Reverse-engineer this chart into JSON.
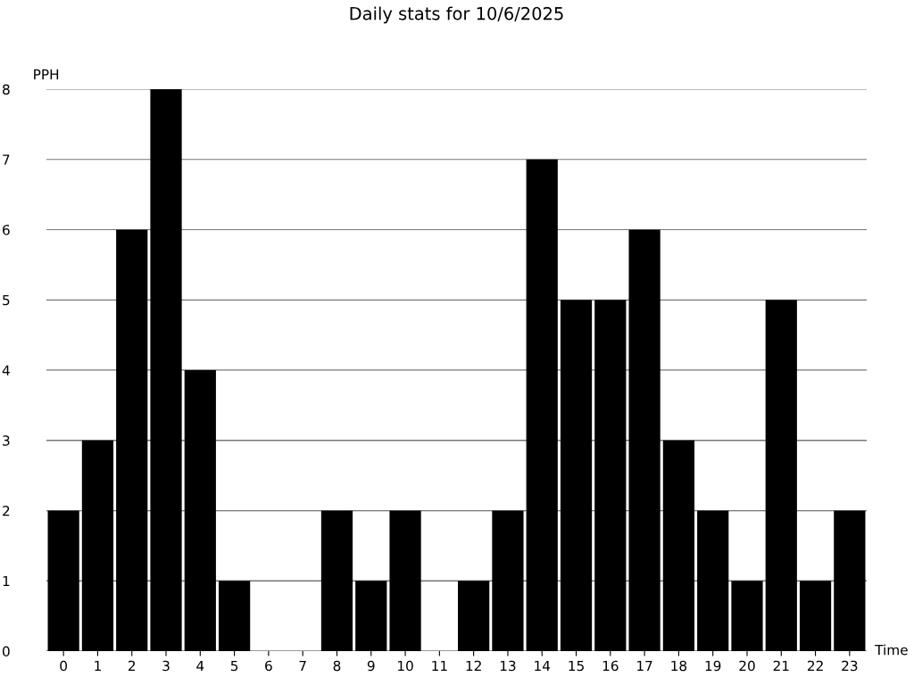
{
  "chart_data": {
    "type": "bar",
    "title": "Daily stats for 10/6/2025",
    "xlabel": "Time",
    "ylabel": "PPH",
    "categories": [
      "0",
      "1",
      "2",
      "3",
      "4",
      "5",
      "6",
      "7",
      "8",
      "9",
      "10",
      "11",
      "12",
      "13",
      "14",
      "15",
      "16",
      "17",
      "18",
      "19",
      "20",
      "21",
      "22",
      "23"
    ],
    "values": [
      2,
      3,
      6,
      8,
      4,
      1,
      0,
      0,
      2,
      1,
      2,
      0,
      1,
      2,
      7,
      5,
      5,
      6,
      3,
      2,
      1,
      5,
      1,
      2
    ],
    "color": "#000000",
    "ylim": [
      0,
      8
    ],
    "yticks": [
      0,
      1,
      2,
      3,
      4,
      5,
      6,
      7,
      8
    ],
    "grid": "y"
  }
}
